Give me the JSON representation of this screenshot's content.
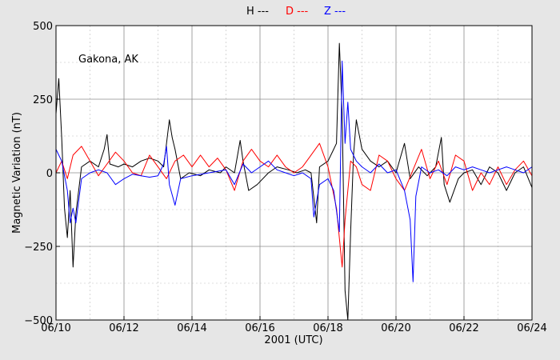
{
  "chart_data": {
    "type": "line",
    "title": "",
    "xlabel": "2001 (UTC)",
    "ylabel": "Magnetic Variation (nT)",
    "annotation": "Gakona, AK",
    "xlim": [
      "2001-06-10",
      "2001-06-24"
    ],
    "ylim": [
      -500,
      500
    ],
    "x_ticks": [
      "06/10",
      "06/12",
      "06/14",
      "06/16",
      "06/18",
      "06/20",
      "06/22",
      "06/24"
    ],
    "y_ticks": [
      {
        "value": 500,
        "label": "500"
      },
      {
        "value": 250,
        "label": "250"
      },
      {
        "value": 0,
        "label": "0"
      },
      {
        "value": -250,
        "label": "−250"
      },
      {
        "value": -500,
        "label": "−500"
      }
    ],
    "grid": true,
    "legend_position": "top-center",
    "series": [
      {
        "name": "H ---",
        "color": "#000000",
        "points": [
          [
            "2001-06-10T00:00",
            200
          ],
          [
            "2001-06-10T02:00",
            320
          ],
          [
            "2001-06-10T04:00",
            120
          ],
          [
            "2001-06-10T06:00",
            -120
          ],
          [
            "2001-06-10T08:00",
            -220
          ],
          [
            "2001-06-10T10:00",
            -60
          ],
          [
            "2001-06-10T12:00",
            -320
          ],
          [
            "2001-06-10T14:00",
            -140
          ],
          [
            "2001-06-10T18:00",
            20
          ],
          [
            "2001-06-11T00:00",
            40
          ],
          [
            "2001-06-11T06:00",
            20
          ],
          [
            "2001-06-11T10:00",
            80
          ],
          [
            "2001-06-11T12:00",
            130
          ],
          [
            "2001-06-11T14:00",
            30
          ],
          [
            "2001-06-11T20:00",
            20
          ],
          [
            "2001-06-12T00:00",
            30
          ],
          [
            "2001-06-12T06:00",
            20
          ],
          [
            "2001-06-12T12:00",
            40
          ],
          [
            "2001-06-12T18:00",
            50
          ],
          [
            "2001-06-13T00:00",
            40
          ],
          [
            "2001-06-13T04:00",
            20
          ],
          [
            "2001-06-13T08:00",
            180
          ],
          [
            "2001-06-13T10:00",
            120
          ],
          [
            "2001-06-13T12:00",
            80
          ],
          [
            "2001-06-13T16:00",
            -20
          ],
          [
            "2001-06-13T22:00",
            0
          ],
          [
            "2001-06-14T06:00",
            -10
          ],
          [
            "2001-06-14T12:00",
            10
          ],
          [
            "2001-06-14T20:00",
            0
          ],
          [
            "2001-06-15T00:00",
            20
          ],
          [
            "2001-06-15T06:00",
            0
          ],
          [
            "2001-06-15T10:00",
            110
          ],
          [
            "2001-06-15T12:00",
            40
          ],
          [
            "2001-06-15T16:00",
            -60
          ],
          [
            "2001-06-15T22:00",
            -40
          ],
          [
            "2001-06-16T06:00",
            0
          ],
          [
            "2001-06-16T12:00",
            20
          ],
          [
            "2001-06-16T20:00",
            10
          ],
          [
            "2001-06-17T02:00",
            0
          ],
          [
            "2001-06-17T08:00",
            10
          ],
          [
            "2001-06-17T12:00",
            0
          ],
          [
            "2001-06-17T16:00",
            -170
          ],
          [
            "2001-06-17T18:00",
            20
          ],
          [
            "2001-06-18T00:00",
            40
          ],
          [
            "2001-06-18T04:00",
            80
          ],
          [
            "2001-06-18T06:00",
            100
          ],
          [
            "2001-06-18T08:00",
            440
          ],
          [
            "2001-06-18T10:00",
            200
          ],
          [
            "2001-06-18T12:00",
            -400
          ],
          [
            "2001-06-18T14:00",
            -500
          ],
          [
            "2001-06-18T16:00",
            -200
          ],
          [
            "2001-06-18T18:00",
            60
          ],
          [
            "2001-06-18T20:00",
            180
          ],
          [
            "2001-06-19T00:00",
            80
          ],
          [
            "2001-06-19T06:00",
            40
          ],
          [
            "2001-06-19T12:00",
            20
          ],
          [
            "2001-06-19T18:00",
            40
          ],
          [
            "2001-06-20T00:00",
            0
          ],
          [
            "2001-06-20T06:00",
            100
          ],
          [
            "2001-06-20T10:00",
            -20
          ],
          [
            "2001-06-20T16:00",
            20
          ],
          [
            "2001-06-20T22:00",
            -10
          ],
          [
            "2001-06-21T04:00",
            20
          ],
          [
            "2001-06-21T08:00",
            120
          ],
          [
            "2001-06-21T10:00",
            -40
          ],
          [
            "2001-06-21T14:00",
            -100
          ],
          [
            "2001-06-21T20:00",
            -20
          ],
          [
            "2001-06-22T00:00",
            0
          ],
          [
            "2001-06-22T06:00",
            10
          ],
          [
            "2001-06-22T12:00",
            -40
          ],
          [
            "2001-06-22T18:00",
            20
          ],
          [
            "2001-06-23T00:00",
            0
          ],
          [
            "2001-06-23T06:00",
            -60
          ],
          [
            "2001-06-23T12:00",
            0
          ],
          [
            "2001-06-23T18:00",
            20
          ],
          [
            "2001-06-24T00:00",
            -50
          ]
        ]
      },
      {
        "name": "D ---",
        "color": "#ff0000",
        "points": [
          [
            "2001-06-10T00:00",
            0
          ],
          [
            "2001-06-10T04:00",
            40
          ],
          [
            "2001-06-10T08:00",
            -20
          ],
          [
            "2001-06-10T12:00",
            60
          ],
          [
            "2001-06-10T18:00",
            90
          ],
          [
            "2001-06-11T00:00",
            40
          ],
          [
            "2001-06-11T06:00",
            -10
          ],
          [
            "2001-06-11T12:00",
            30
          ],
          [
            "2001-06-11T18:00",
            70
          ],
          [
            "2001-06-12T00:00",
            40
          ],
          [
            "2001-06-12T06:00",
            0
          ],
          [
            "2001-06-12T12:00",
            -10
          ],
          [
            "2001-06-12T18:00",
            60
          ],
          [
            "2001-06-13T00:00",
            20
          ],
          [
            "2001-06-13T06:00",
            -20
          ],
          [
            "2001-06-13T12:00",
            40
          ],
          [
            "2001-06-13T18:00",
            60
          ],
          [
            "2001-06-14T00:00",
            20
          ],
          [
            "2001-06-14T06:00",
            60
          ],
          [
            "2001-06-14T12:00",
            20
          ],
          [
            "2001-06-14T18:00",
            50
          ],
          [
            "2001-06-15T00:00",
            10
          ],
          [
            "2001-06-15T06:00",
            -60
          ],
          [
            "2001-06-15T12:00",
            40
          ],
          [
            "2001-06-15T18:00",
            80
          ],
          [
            "2001-06-16T00:00",
            40
          ],
          [
            "2001-06-16T06:00",
            20
          ],
          [
            "2001-06-16T12:00",
            60
          ],
          [
            "2001-06-16T18:00",
            20
          ],
          [
            "2001-06-17T00:00",
            0
          ],
          [
            "2001-06-17T06:00",
            20
          ],
          [
            "2001-06-17T12:00",
            60
          ],
          [
            "2001-06-17T18:00",
            100
          ],
          [
            "2001-06-18T00:00",
            20
          ],
          [
            "2001-06-18T06:00",
            -120
          ],
          [
            "2001-06-18T10:00",
            -320
          ],
          [
            "2001-06-18T12:00",
            -160
          ],
          [
            "2001-06-18T16:00",
            40
          ],
          [
            "2001-06-18T20:00",
            20
          ],
          [
            "2001-06-19T00:00",
            -40
          ],
          [
            "2001-06-19T06:00",
            -60
          ],
          [
            "2001-06-19T12:00",
            60
          ],
          [
            "2001-06-19T18:00",
            40
          ],
          [
            "2001-06-20T00:00",
            -20
          ],
          [
            "2001-06-20T06:00",
            -60
          ],
          [
            "2001-06-20T12:00",
            10
          ],
          [
            "2001-06-20T18:00",
            80
          ],
          [
            "2001-06-21T00:00",
            -20
          ],
          [
            "2001-06-21T06:00",
            40
          ],
          [
            "2001-06-21T12:00",
            -40
          ],
          [
            "2001-06-21T18:00",
            60
          ],
          [
            "2001-06-22T00:00",
            40
          ],
          [
            "2001-06-22T06:00",
            -60
          ],
          [
            "2001-06-22T12:00",
            0
          ],
          [
            "2001-06-22T18:00",
            -40
          ],
          [
            "2001-06-23T00:00",
            20
          ],
          [
            "2001-06-23T06:00",
            -40
          ],
          [
            "2001-06-23T12:00",
            10
          ],
          [
            "2001-06-23T18:00",
            40
          ],
          [
            "2001-06-24T00:00",
            -10
          ]
        ]
      },
      {
        "name": "Z ---",
        "color": "#0000ff",
        "points": [
          [
            "2001-06-10T00:00",
            80
          ],
          [
            "2001-06-10T04:00",
            40
          ],
          [
            "2001-06-10T08:00",
            -60
          ],
          [
            "2001-06-10T10:00",
            -170
          ],
          [
            "2001-06-10T12:00",
            -120
          ],
          [
            "2001-06-10T14:00",
            -170
          ],
          [
            "2001-06-10T18:00",
            -20
          ],
          [
            "2001-06-11T00:00",
            0
          ],
          [
            "2001-06-11T06:00",
            10
          ],
          [
            "2001-06-11T12:00",
            0
          ],
          [
            "2001-06-11T18:00",
            -40
          ],
          [
            "2001-06-12T00:00",
            -20
          ],
          [
            "2001-06-12T06:00",
            -5
          ],
          [
            "2001-06-12T12:00",
            -10
          ],
          [
            "2001-06-12T18:00",
            -15
          ],
          [
            "2001-06-13T00:00",
            -10
          ],
          [
            "2001-06-13T04:00",
            30
          ],
          [
            "2001-06-13T06:00",
            90
          ],
          [
            "2001-06-13T08:00",
            -40
          ],
          [
            "2001-06-13T12:00",
            -110
          ],
          [
            "2001-06-13T16:00",
            -20
          ],
          [
            "2001-06-14T00:00",
            -10
          ],
          [
            "2001-06-14T12:00",
            0
          ],
          [
            "2001-06-15T00:00",
            10
          ],
          [
            "2001-06-15T06:00",
            -40
          ],
          [
            "2001-06-15T12:00",
            30
          ],
          [
            "2001-06-15T18:00",
            0
          ],
          [
            "2001-06-16T00:00",
            20
          ],
          [
            "2001-06-16T06:00",
            40
          ],
          [
            "2001-06-16T12:00",
            10
          ],
          [
            "2001-06-16T18:00",
            0
          ],
          [
            "2001-06-17T00:00",
            -10
          ],
          [
            "2001-06-17T06:00",
            0
          ],
          [
            "2001-06-17T12:00",
            -20
          ],
          [
            "2001-06-17T14:00",
            -150
          ],
          [
            "2001-06-17T18:00",
            -40
          ],
          [
            "2001-06-18T00:00",
            -20
          ],
          [
            "2001-06-18T04:00",
            -60
          ],
          [
            "2001-06-18T08:00",
            -200
          ],
          [
            "2001-06-18T10:00",
            380
          ],
          [
            "2001-06-18T12:00",
            100
          ],
          [
            "2001-06-18T14:00",
            240
          ],
          [
            "2001-06-18T16:00",
            80
          ],
          [
            "2001-06-18T20:00",
            40
          ],
          [
            "2001-06-19T00:00",
            20
          ],
          [
            "2001-06-19T06:00",
            0
          ],
          [
            "2001-06-19T12:00",
            30
          ],
          [
            "2001-06-19T18:00",
            0
          ],
          [
            "2001-06-20T00:00",
            10
          ],
          [
            "2001-06-20T06:00",
            -60
          ],
          [
            "2001-06-20T10:00",
            -160
          ],
          [
            "2001-06-20T12:00",
            -370
          ],
          [
            "2001-06-20T14:00",
            -80
          ],
          [
            "2001-06-20T18:00",
            20
          ],
          [
            "2001-06-21T00:00",
            0
          ],
          [
            "2001-06-21T06:00",
            10
          ],
          [
            "2001-06-21T12:00",
            -10
          ],
          [
            "2001-06-21T18:00",
            20
          ],
          [
            "2001-06-22T00:00",
            10
          ],
          [
            "2001-06-22T06:00",
            20
          ],
          [
            "2001-06-22T12:00",
            10
          ],
          [
            "2001-06-22T18:00",
            0
          ],
          [
            "2001-06-23T00:00",
            10
          ],
          [
            "2001-06-23T06:00",
            20
          ],
          [
            "2001-06-23T12:00",
            10
          ],
          [
            "2001-06-23T18:00",
            0
          ],
          [
            "2001-06-24T00:00",
            20
          ]
        ]
      }
    ]
  }
}
